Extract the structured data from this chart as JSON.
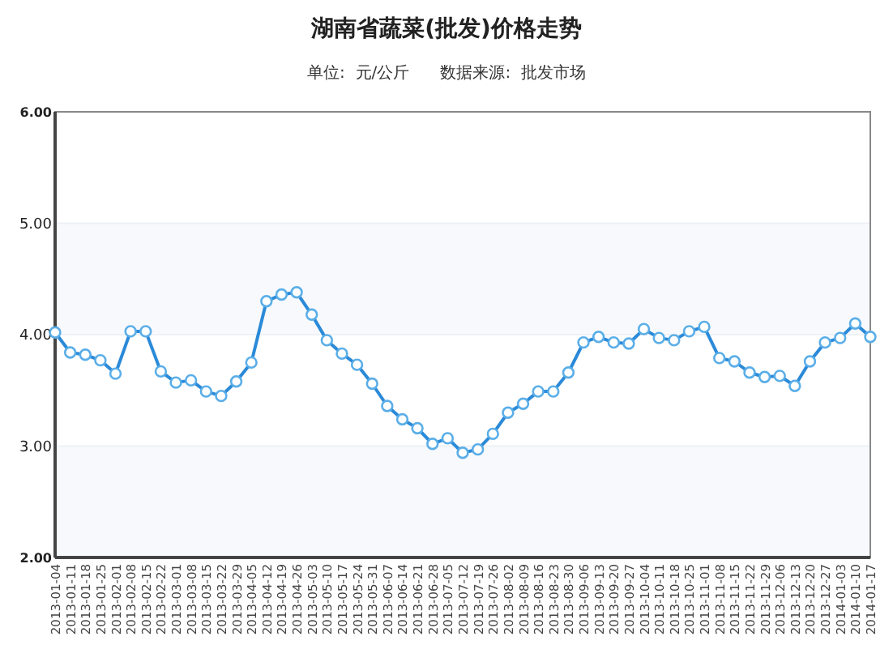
{
  "chart_data": {
    "type": "line",
    "title": "湖南省蔬菜(批发)价格走势",
    "subtitle": "单位:  元/公斤      数据来源:  批发市场",
    "categories": [
      "2013-01-04",
      "2013-01-11",
      "2013-01-18",
      "2013-01-25",
      "2013-02-01",
      "2013-02-08",
      "2013-02-15",
      "2013-02-22",
      "2013-03-01",
      "2013-03-08",
      "2013-03-15",
      "2013-03-22",
      "2013-03-29",
      "2013-04-05",
      "2013-04-12",
      "2013-04-19",
      "2013-04-26",
      "2013-05-03",
      "2013-05-10",
      "2013-05-17",
      "2013-05-24",
      "2013-05-31",
      "2013-06-07",
      "2013-06-14",
      "2013-06-21",
      "2013-06-28",
      "2013-07-05",
      "2013-07-12",
      "2013-07-19",
      "2013-07-26",
      "2013-08-02",
      "2013-08-09",
      "2013-08-16",
      "2013-08-23",
      "2013-08-30",
      "2013-09-06",
      "2013-09-13",
      "2013-09-20",
      "2013-09-27",
      "2013-10-04",
      "2013-10-11",
      "2013-10-18",
      "2013-10-25",
      "2013-11-01",
      "2013-11-08",
      "2013-11-15",
      "2013-11-22",
      "2013-11-29",
      "2013-12-06",
      "2013-12-13",
      "2013-12-20",
      "2013-12-27",
      "2014-01-03",
      "2014-01-10",
      "2014-01-17"
    ],
    "series": [
      {
        "color": "#2b8ad8",
        "values": [
          4.02,
          3.84,
          3.82,
          3.77,
          3.65,
          4.03,
          4.03,
          3.67,
          3.57,
          3.59,
          3.49,
          3.45,
          3.58,
          3.75,
          4.3,
          4.36,
          4.38,
          4.18,
          3.95,
          3.83,
          3.73,
          3.56,
          3.36,
          3.24,
          3.16,
          3.02,
          3.07,
          2.94,
          2.97,
          3.11,
          3.3,
          3.38,
          3.49,
          3.49,
          3.66,
          3.93,
          3.98,
          3.93,
          3.92,
          4.05,
          3.97,
          3.95,
          4.03,
          4.07,
          3.79,
          3.76,
          3.66,
          3.62,
          3.63,
          3.54,
          3.76,
          3.93,
          3.97,
          4.1,
          3.98
        ]
      }
    ],
    "ylim": [
      2,
      6
    ],
    "yticks": [
      {
        "value": 2,
        "label": "2.00"
      },
      {
        "value": 3,
        "label": "3.00"
      },
      {
        "value": 4,
        "label": "4.00"
      },
      {
        "value": 5,
        "label": "5.00"
      },
      {
        "value": 6,
        "label": "6.00"
      }
    ],
    "grid": "y",
    "marker": "circle",
    "line_style": "solid"
  }
}
